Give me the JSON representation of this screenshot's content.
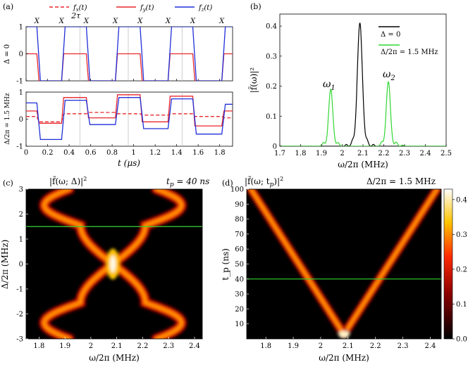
{
  "panel_labels": [
    "(a)",
    "(b)",
    "(c)",
    "(d)"
  ],
  "annotations": {
    "two_tau": "2τ",
    "x_mark": "X",
    "omega1": "ω",
    "omega1_sub": "1",
    "omega2": "ω",
    "omega2_sub": "2",
    "tp_text": "t",
    "tp_sub": "p",
    "tp_value": " = 40 ns",
    "delta_text": "Δ/2π = 1.5 MHz",
    "c_title": "|f̃(ω; Δ)|",
    "c_title_sup": "2",
    "d_title": "|f̃(ω; t",
    "d_title_sub": "p",
    "d_title_end": ")|",
    "d_title_sup": "2"
  },
  "colors": {
    "fx": "#e8272c",
    "fy": "#e8272c",
    "fz": "#1f2fd8",
    "delta0": "#000000",
    "delta15": "#33d633",
    "guide": "#33d633",
    "grid": "#c0c0c0"
  },
  "chart_data": [
    {
      "id": "a",
      "type": "line",
      "legend": [
        "f_x(t)",
        "f_y(t)",
        "f_z(t)"
      ],
      "legend_placement": "top",
      "xlabel": "t (μs)",
      "xlim": [
        0,
        1.92
      ],
      "x_ticks": [
        "0",
        "0.2",
        "0.4",
        "0.6",
        "0.8",
        "1",
        "1.2",
        "1.4",
        "1.6",
        "1.8"
      ],
      "x_marks": [
        0.1,
        0.33,
        0.56,
        0.83,
        1.06,
        1.32,
        1.55,
        1.82
      ],
      "subplots": [
        {
          "ylabel": "Δ = 0",
          "ylim": [
            -1,
            1
          ],
          "y_ticks": [
            "-1",
            "0",
            "1"
          ],
          "pulse_edges": [
            0.1,
            0.33,
            0.56,
            0.83,
            1.06,
            1.32,
            1.55,
            1.82
          ],
          "fz_levels": [
            1,
            -1,
            1,
            -1,
            1,
            -1,
            1,
            -1,
            1
          ],
          "fy_levels": [
            0,
            -1,
            0,
            -1,
            0,
            -1,
            0,
            -1,
            0
          ]
        },
        {
          "ylabel": "Δ/2π = 1.5 MHz",
          "ylim": [
            -1,
            1
          ],
          "y_ticks": [
            "-1",
            "0",
            "1"
          ],
          "pulse_edges": [
            0.1,
            0.33,
            0.56,
            0.83,
            1.06,
            1.32,
            1.55,
            1.82
          ],
          "fz_levels": [
            0.6,
            -0.75,
            0.7,
            -0.2,
            0.8,
            -0.35,
            0.75,
            -0.55,
            0.55
          ],
          "fy_levels": [
            0.3,
            -0.15,
            0.8,
            0.05,
            0.9,
            -0.1,
            0.85,
            -0.25,
            0.3
          ],
          "fx_levels": [
            0.1,
            -0.1,
            0.2,
            0.25,
            0.2,
            0.15,
            0.2,
            0.1,
            0.05
          ]
        }
      ]
    },
    {
      "id": "b",
      "type": "line",
      "xlabel": "ω/2π (MHz)",
      "ylabel": "|f̃(ω)|²",
      "xlim": [
        1.7,
        2.5
      ],
      "ylim": [
        0,
        0.44
      ],
      "x_ticks": [
        "1.7",
        "1.8",
        "1.9",
        "2",
        "2.1",
        "2.2",
        "2.3",
        "2.4",
        "2.5"
      ],
      "y_ticks": [
        "0",
        "0.1",
        "0.2",
        "0.3",
        "0.4"
      ],
      "series": [
        {
          "name": "Δ = 0",
          "peaks": [
            [
              2.085,
              0.41,
              0.012
            ],
            [
              2.05,
              0.018,
              0.006
            ],
            [
              2.12,
              0.018,
              0.006
            ],
            [
              2.02,
              0.006,
              0.005
            ],
            [
              2.15,
              0.006,
              0.005
            ]
          ]
        },
        {
          "name": "Δ/2π = 1.5 MHz",
          "peaks": [
            [
              1.945,
              0.19,
              0.01
            ],
            [
              2.222,
              0.215,
              0.01
            ],
            [
              1.91,
              0.012,
              0.006
            ],
            [
              1.98,
              0.012,
              0.006
            ],
            [
              2.19,
              0.014,
              0.006
            ],
            [
              2.26,
              0.014,
              0.006
            ],
            [
              2.29,
              0.004,
              0.005
            ]
          ]
        }
      ],
      "legend_placement": "top-right"
    },
    {
      "id": "c",
      "type": "heatmap",
      "xlabel": "ω/2π (MHz)",
      "ylabel": "Δ/2π (MHz)",
      "xlim": [
        1.75,
        2.43
      ],
      "ylim": [
        -3,
        3
      ],
      "x_ticks": [
        "1.8",
        "1.9",
        "2",
        "2.1",
        "2.2",
        "2.3",
        "2.4"
      ],
      "y_ticks": [
        "-3",
        "-2",
        "-1",
        "0",
        "1",
        "2",
        "3"
      ],
      "center_freq": 2.085,
      "horizontal_line": 1.5
    },
    {
      "id": "d",
      "type": "heatmap",
      "xlabel": "ω/2π (MHz)",
      "ylabel": "t_p (ns)",
      "xlim": [
        1.73,
        2.44
      ],
      "ylim": [
        0,
        100
      ],
      "x_ticks": [
        "1.8",
        "1.9",
        "2",
        "2.1",
        "2.2",
        "2.3",
        "2.4"
      ],
      "y_ticks": [
        "10",
        "20",
        "30",
        "40",
        "50",
        "60",
        "70",
        "80",
        "90",
        "100"
      ],
      "center_freq": 2.085,
      "horizontal_line": 40,
      "colorbar_ticks": [
        "0.0",
        "0.1",
        "0.2",
        "0.3",
        "0.4"
      ],
      "colorbar_range": [
        0,
        0.43
      ]
    }
  ]
}
